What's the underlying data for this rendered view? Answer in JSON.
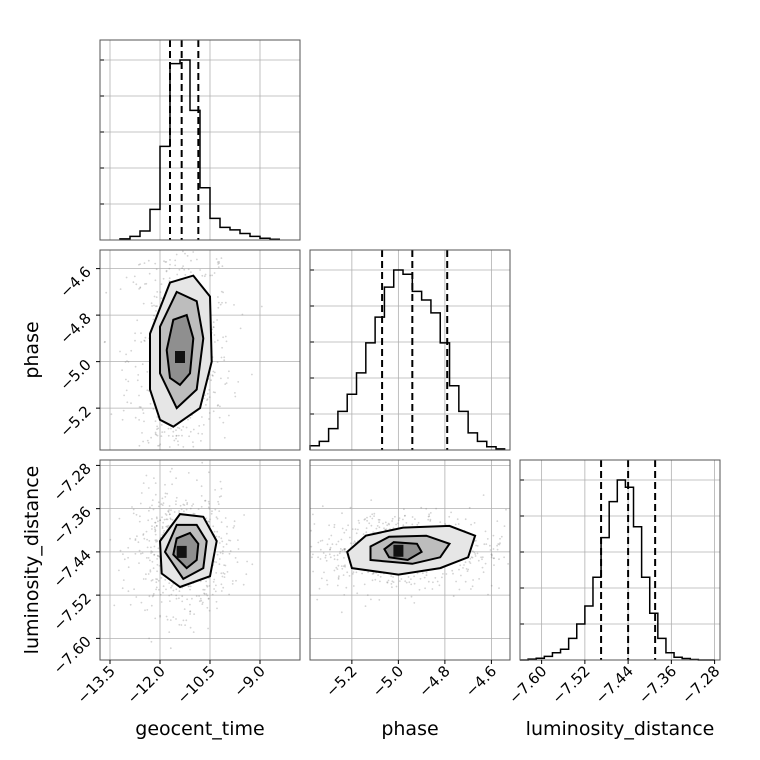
{
  "chart_data": {
    "type": "corner",
    "parameters": [
      "geocent_time",
      "phase",
      "luminosity_distance"
    ],
    "colors": {
      "line": "#000000",
      "grid": "#b0b0b0",
      "frame": "#555555",
      "points": "#808080"
    },
    "grid": true,
    "axes": {
      "geocent_time": {
        "range": [
          -13.8,
          -7.8
        ],
        "ticks": [
          -13.5,
          -12.0,
          -10.5,
          -9.0
        ],
        "tick_labels": [
          "−13.5",
          "−12.0",
          "−10.5",
          "−9.0"
        ]
      },
      "phase": {
        "range": [
          -5.38,
          -4.52
        ],
        "ticks": [
          -5.2,
          -5.0,
          -4.8,
          -4.6
        ],
        "tick_labels": [
          "−5.2",
          "−5.0",
          "−4.8",
          "−4.6"
        ]
      },
      "luminosity_distance": {
        "range": [
          -7.64,
          -7.27
        ],
        "ticks": [
          -7.6,
          -7.52,
          -7.44,
          -7.36,
          -7.28
        ],
        "tick_labels": [
          "−7.60",
          "−7.52",
          "−7.44",
          "−7.36",
          "−7.28"
        ]
      }
    },
    "histograms": {
      "geocent_time": {
        "bin_edges": [
          -13.2,
          -12.9,
          -12.6,
          -12.3,
          -12.0,
          -11.7,
          -11.4,
          -11.1,
          -10.8,
          -10.5,
          -10.2,
          -9.9,
          -9.6,
          -9.3,
          -9.0,
          -8.7,
          -8.4
        ],
        "counts": [
          0.3,
          1.0,
          2.5,
          8.5,
          26,
          49,
          50,
          36,
          14.5,
          6,
          3.5,
          2.8,
          1.8,
          1.0,
          0.5,
          0.2
        ],
        "quantiles": [
          -11.7,
          -11.35,
          -10.85
        ]
      },
      "phase": {
        "bin_edges": [
          -5.38,
          -5.34,
          -5.3,
          -5.26,
          -5.22,
          -5.18,
          -5.14,
          -5.1,
          -5.06,
          -5.02,
          -4.98,
          -4.94,
          -4.9,
          -4.86,
          -4.82,
          -4.78,
          -4.74,
          -4.7,
          -4.66,
          -4.62,
          -4.58,
          -4.54
        ],
        "counts": [
          2,
          4,
          10,
          18,
          26,
          36,
          50,
          62,
          76,
          84,
          82,
          74,
          70,
          64,
          50,
          30,
          18,
          8,
          4,
          1.5,
          0.5
        ],
        "quantiles": [
          -5.07,
          -4.94,
          -4.79
        ]
      },
      "luminosity_distance": {
        "bin_edges": [
          -7.64,
          -7.625,
          -7.61,
          -7.595,
          -7.58,
          -7.565,
          -7.55,
          -7.535,
          -7.52,
          -7.505,
          -7.49,
          -7.475,
          -7.46,
          -7.445,
          -7.43,
          -7.415,
          -7.4,
          -7.385,
          -7.37,
          -7.355,
          -7.34,
          -7.325,
          -7.31,
          -7.295,
          -7.28
        ],
        "counts": [
          0,
          0.5,
          1.0,
          2,
          4,
          6,
          12,
          20,
          30,
          46,
          68,
          88,
          100,
          96,
          74,
          46,
          26,
          12,
          4,
          1.5,
          0.8,
          0.3,
          0,
          0
        ],
        "quantiles": [
          -7.49,
          -7.44,
          -7.39
        ]
      }
    },
    "pairs": [
      {
        "x": "geocent_time",
        "y": "phase",
        "contours": [
          [
            [
              -11.4,
              -5.1
            ],
            [
              -11.1,
              -5.05
            ],
            [
              -11.0,
              -4.9
            ],
            [
              -11.2,
              -4.8
            ],
            [
              -11.6,
              -4.82
            ],
            [
              -11.8,
              -4.95
            ],
            [
              -11.7,
              -5.07
            ]
          ],
          [
            [
              -11.5,
              -5.2
            ],
            [
              -10.9,
              -5.12
            ],
            [
              -10.7,
              -4.9
            ],
            [
              -10.9,
              -4.74
            ],
            [
              -11.5,
              -4.7
            ],
            [
              -12.0,
              -4.85
            ],
            [
              -12.0,
              -5.05
            ]
          ],
          [
            [
              -11.6,
              -5.28
            ],
            [
              -10.8,
              -5.2
            ],
            [
              -10.45,
              -5.0
            ],
            [
              -10.5,
              -4.72
            ],
            [
              -11.0,
              -4.63
            ],
            [
              -11.7,
              -4.66
            ],
            [
              -12.3,
              -4.88
            ],
            [
              -12.3,
              -5.12
            ],
            [
              -12.0,
              -5.25
            ]
          ]
        ],
        "density_peak": [
          -11.4,
          -4.98
        ]
      },
      {
        "x": "geocent_time",
        "y": "luminosity_distance",
        "contours": [
          [
            [
              -11.2,
              -7.47
            ],
            [
              -10.9,
              -7.455
            ],
            [
              -10.85,
              -7.425
            ],
            [
              -11.1,
              -7.405
            ],
            [
              -11.5,
              -7.415
            ],
            [
              -11.6,
              -7.445
            ]
          ],
          [
            [
              -11.3,
              -7.49
            ],
            [
              -10.7,
              -7.47
            ],
            [
              -10.6,
              -7.42
            ],
            [
              -10.9,
              -7.39
            ],
            [
              -11.5,
              -7.39
            ],
            [
              -11.85,
              -7.44
            ]
          ],
          [
            [
              -11.4,
              -7.505
            ],
            [
              -10.5,
              -7.485
            ],
            [
              -10.3,
              -7.42
            ],
            [
              -10.7,
              -7.375
            ],
            [
              -11.4,
              -7.37
            ],
            [
              -12.0,
              -7.42
            ],
            [
              -11.95,
              -7.48
            ]
          ]
        ],
        "density_peak": [
          -11.35,
          -7.44
        ]
      },
      {
        "x": "phase",
        "y": "luminosity_distance",
        "contours": [
          [
            [
              -5.04,
              -7.45
            ],
            [
              -4.96,
              -7.455
            ],
            [
              -4.9,
              -7.44
            ],
            [
              -4.92,
              -7.425
            ],
            [
              -5.02,
              -7.422
            ],
            [
              -5.06,
              -7.435
            ]
          ],
          [
            [
              -5.12,
              -7.455
            ],
            [
              -4.94,
              -7.462
            ],
            [
              -4.82,
              -7.45
            ],
            [
              -4.78,
              -7.425
            ],
            [
              -4.88,
              -7.41
            ],
            [
              -5.04,
              -7.412
            ],
            [
              -5.12,
              -7.43
            ]
          ],
          [
            [
              -5.2,
              -7.47
            ],
            [
              -5.0,
              -7.482
            ],
            [
              -4.82,
              -7.47
            ],
            [
              -4.7,
              -7.45
            ],
            [
              -4.67,
              -7.41
            ],
            [
              -4.78,
              -7.392
            ],
            [
              -4.98,
              -7.395
            ],
            [
              -5.14,
              -7.41
            ],
            [
              -5.22,
              -7.44
            ]
          ]
        ],
        "density_peak": [
          -5.0,
          -7.438
        ]
      }
    ]
  }
}
